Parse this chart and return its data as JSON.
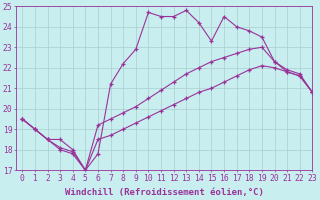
{
  "background_color": "#c8eef0",
  "grid_color": "#aacccc",
  "line_color": "#993399",
  "marker": "+",
  "xlim": [
    -0.5,
    23
  ],
  "ylim": [
    17,
    25
  ],
  "yticks": [
    17,
    18,
    19,
    20,
    21,
    22,
    23,
    24,
    25
  ],
  "xticks": [
    0,
    1,
    2,
    3,
    4,
    5,
    6,
    7,
    8,
    9,
    10,
    11,
    12,
    13,
    14,
    15,
    16,
    17,
    18,
    19,
    20,
    21,
    22,
    23
  ],
  "xlabel": "Windchill (Refroidissement éolien,°C)",
  "xlabel_fontsize": 6.5,
  "tick_fontsize": 5.8,
  "series1_x": [
    0,
    1,
    2,
    3,
    4,
    5,
    6,
    7,
    8,
    9,
    10,
    11,
    12,
    13,
    14,
    15,
    16,
    17,
    18,
    19,
    20,
    21,
    22,
    23
  ],
  "series1_y": [
    19.5,
    19.0,
    18.5,
    18.0,
    17.8,
    17.0,
    17.8,
    21.2,
    22.2,
    22.9,
    24.7,
    24.5,
    24.5,
    24.8,
    24.2,
    23.3,
    24.5,
    24.0,
    23.8,
    23.5,
    22.3,
    21.8,
    21.6,
    20.8
  ],
  "series2_x": [
    0,
    1,
    2,
    3,
    4,
    5,
    6,
    7,
    8,
    9,
    10,
    11,
    12,
    13,
    14,
    15,
    16,
    17,
    18,
    19,
    20,
    21,
    22,
    23
  ],
  "series2_y": [
    19.5,
    19.0,
    18.5,
    18.5,
    18.0,
    17.0,
    19.2,
    19.5,
    19.8,
    20.1,
    20.5,
    20.9,
    21.3,
    21.7,
    22.0,
    22.3,
    22.5,
    22.7,
    22.9,
    23.0,
    22.3,
    21.9,
    21.7,
    20.8
  ],
  "series3_x": [
    0,
    1,
    2,
    3,
    4,
    5,
    6,
    7,
    8,
    9,
    10,
    11,
    12,
    13,
    14,
    15,
    16,
    17,
    18,
    19,
    20,
    21,
    22,
    23
  ],
  "series3_y": [
    19.5,
    19.0,
    18.5,
    18.1,
    17.9,
    17.0,
    18.5,
    18.7,
    19.0,
    19.3,
    19.6,
    19.9,
    20.2,
    20.5,
    20.8,
    21.0,
    21.3,
    21.6,
    21.9,
    22.1,
    22.0,
    21.8,
    21.6,
    20.8
  ]
}
